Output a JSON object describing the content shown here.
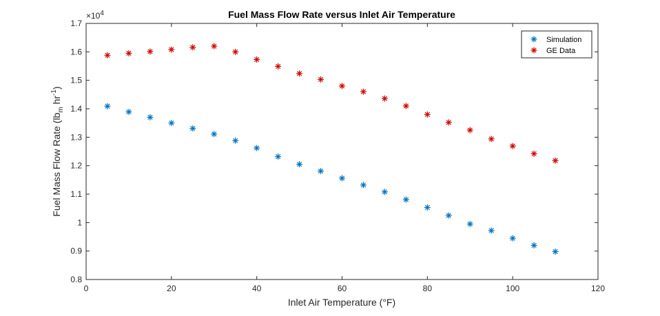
{
  "chart_data": {
    "type": "scatter",
    "title": "Fuel Mass Flow Rate versus Inlet Air Temperature",
    "xlabel": "Inlet Air Temperature (°F)",
    "ylabel": {
      "prefix": "Fuel Mass Flow Rate (lb",
      "sub": "m",
      "middle": " hr",
      "sup": "-1",
      "suffix": ")"
    },
    "exponent": {
      "base": "×10",
      "power": "4"
    },
    "xlim": [
      0,
      120
    ],
    "ylim": [
      0.8,
      1.7
    ],
    "xticks": [
      "0",
      "20",
      "40",
      "60",
      "80",
      "100",
      "120"
    ],
    "yticks": [
      "0.8",
      "0.9",
      "1",
      "1.1",
      "1.2",
      "1.3",
      "1.4",
      "1.5",
      "1.6",
      "1.7"
    ],
    "grid": false,
    "legend_position": "top-right",
    "marker": "*",
    "x": [
      5,
      10,
      15,
      20,
      25,
      30,
      35,
      40,
      45,
      50,
      55,
      60,
      65,
      70,
      75,
      80,
      85,
      90,
      95,
      100,
      105,
      110
    ],
    "series": [
      {
        "name": "Simulation",
        "color": "#0072BD",
        "values": [
          1.409,
          1.389,
          1.37,
          1.35,
          1.331,
          1.311,
          1.288,
          1.262,
          1.232,
          1.205,
          1.181,
          1.156,
          1.132,
          1.108,
          1.081,
          1.053,
          1.025,
          0.995,
          0.972,
          0.945,
          0.92,
          0.898
        ]
      },
      {
        "name": "GE Data",
        "color": "#D00000",
        "values": [
          1.588,
          1.595,
          1.601,
          1.608,
          1.616,
          1.62,
          1.6,
          1.573,
          1.549,
          1.524,
          1.503,
          1.48,
          1.46,
          1.436,
          1.41,
          1.38,
          1.352,
          1.325,
          1.294,
          1.269,
          1.242,
          1.218
        ]
      }
    ]
  }
}
